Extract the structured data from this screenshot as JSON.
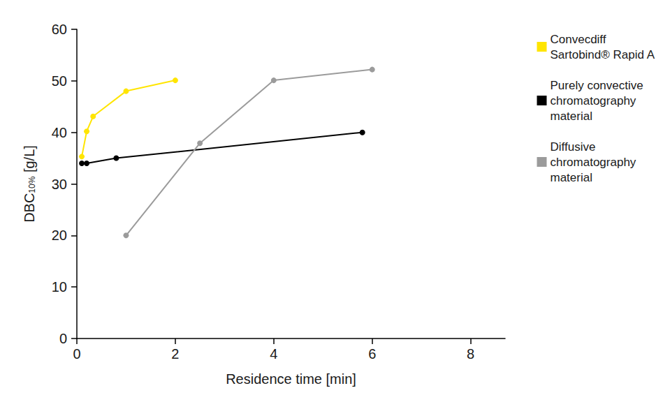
{
  "chart_data": {
    "type": "line",
    "x_label": "Residence time [min]",
    "y_label": "DBC10% [g/L]",
    "xlim": [
      0,
      8.7
    ],
    "xticks": [
      0,
      2,
      4,
      6,
      8
    ],
    "ylim": [
      0,
      60
    ],
    "yticks": [
      0,
      10,
      20,
      30,
      40,
      50,
      60
    ],
    "grid": false,
    "legend": "right",
    "marker": "circle",
    "series": [
      {
        "name": "Convecdiff Sartobind® Rapid A",
        "color": "#ffe500",
        "x": [
          0.1,
          0.2,
          0.33,
          1,
          2
        ],
        "values": [
          35.3,
          40.2,
          43.1,
          48,
          50.1
        ]
      },
      {
        "name": "Purely convective chromatography material",
        "color": "#000000",
        "x": [
          0.1,
          0.2,
          0.8,
          5.8
        ],
        "values": [
          34,
          34,
          35,
          40
        ]
      },
      {
        "name": "Diffusive chromatography material",
        "color": "#9b9b9b",
        "x": [
          1,
          2.5,
          4,
          6
        ],
        "values": [
          20,
          37.9,
          50.1,
          52.2
        ]
      }
    ]
  }
}
